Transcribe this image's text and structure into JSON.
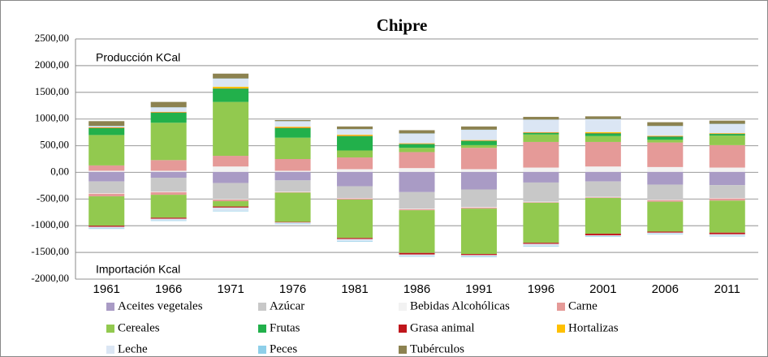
{
  "chart_data": {
    "type": "bar",
    "title": "Chipre",
    "annotations": [
      "Producción KCal",
      "Importación Kcal"
    ],
    "categories": [
      "1961",
      "1966",
      "1971",
      "1976",
      "1981",
      "1986",
      "1991",
      "1996",
      "2001",
      "2006",
      "2011"
    ],
    "ylim": [
      -2000,
      2500
    ],
    "yticks": [
      {
        "value": -2000,
        "label": "-2000,00"
      },
      {
        "value": -1500,
        "label": "-1500,00"
      },
      {
        "value": -1000,
        "label": "-1000,00"
      },
      {
        "value": -500,
        "label": "-500,00"
      },
      {
        "value": 0,
        "label": "0,00"
      },
      {
        "value": 500,
        "label": "500,00"
      },
      {
        "value": 1000,
        "label": "1000,00"
      },
      {
        "value": 1500,
        "label": "1500,00"
      },
      {
        "value": 2000,
        "label": "2000,00"
      },
      {
        "value": 2500,
        "label": "2500,00"
      }
    ],
    "grid": true,
    "series": [
      {
        "name": "Aceites vegetales",
        "color": "#a99bc5",
        "values": [
          10,
          10,
          10,
          10,
          10,
          10,
          10,
          10,
          10,
          10,
          10
        ],
        "import": [
          -170,
          -100,
          -200,
          -150,
          -260,
          -370,
          -320,
          -190,
          -170,
          -230,
          -240
        ]
      },
      {
        "name": "Azúcar",
        "color": "#c8c8c8",
        "values": [
          0,
          0,
          0,
          0,
          0,
          0,
          0,
          0,
          0,
          0,
          0
        ],
        "import": [
          -220,
          -260,
          -300,
          -210,
          -220,
          -310,
          -330,
          -360,
          -290,
          -280,
          -240
        ]
      },
      {
        "name": "Bebidas Alcohólicas",
        "color": "#f2f2f2",
        "values": [
          20,
          20,
          100,
          20,
          50,
          70,
          50,
          80,
          100,
          90,
          80
        ],
        "import": [
          -10,
          -10,
          -10,
          -10,
          -10,
          -10,
          -10,
          -10,
          -10,
          -10,
          -10
        ]
      },
      {
        "name": "Carne",
        "color": "#e59a98",
        "values": [
          100,
          200,
          200,
          220,
          220,
          300,
          400,
          480,
          460,
          460,
          420
        ],
        "import": [
          -50,
          -50,
          -30,
          -10,
          -20,
          -20,
          -20,
          -10,
          -10,
          -30,
          -40
        ]
      },
      {
        "name": "Cereales",
        "color": "#92c94f",
        "values": [
          570,
          700,
          1010,
          400,
          130,
          80,
          50,
          140,
          110,
          50,
          180
        ],
        "import": [
          -550,
          -430,
          -100,
          -550,
          -720,
          -800,
          -850,
          -750,
          -670,
          -560,
          -600
        ]
      },
      {
        "name": "Frutas",
        "color": "#22b04b",
        "values": [
          130,
          190,
          250,
          180,
          270,
          70,
          80,
          30,
          50,
          60,
          30
        ],
        "import": [
          0,
          0,
          0,
          0,
          0,
          0,
          0,
          0,
          0,
          0,
          0
        ]
      },
      {
        "name": "Grasa animal",
        "color": "#c0161c",
        "values": [
          5,
          5,
          5,
          5,
          5,
          5,
          5,
          5,
          5,
          5,
          5
        ],
        "import": [
          -20,
          -20,
          -20,
          -10,
          -20,
          -30,
          -20,
          -20,
          -30,
          -20,
          -30
        ]
      },
      {
        "name": "Hortalizas",
        "color": "#ffc000",
        "values": [
          10,
          10,
          30,
          20,
          20,
          10,
          10,
          10,
          20,
          10,
          10
        ],
        "import": [
          0,
          0,
          0,
          0,
          0,
          0,
          0,
          0,
          0,
          0,
          0
        ]
      },
      {
        "name": "Leche",
        "color": "#dbe6f4",
        "values": [
          20,
          80,
          150,
          100,
          100,
          180,
          190,
          230,
          240,
          180,
          170
        ],
        "import": [
          -30,
          -30,
          -60,
          -20,
          -40,
          -30,
          -30,
          -40,
          -20,
          -20,
          -30
        ]
      },
      {
        "name": "Peces",
        "color": "#8ecfe9",
        "values": [
          5,
          5,
          5,
          5,
          5,
          5,
          5,
          5,
          5,
          5,
          5
        ],
        "import": [
          -10,
          -10,
          -10,
          -10,
          -10,
          -10,
          -10,
          -10,
          -10,
          -10,
          -10
        ]
      },
      {
        "name": "Tubérculos",
        "color": "#8c8250",
        "values": [
          90,
          100,
          90,
          20,
          50,
          60,
          60,
          50,
          50,
          70,
          60
        ],
        "import": [
          0,
          0,
          0,
          0,
          0,
          0,
          0,
          0,
          0,
          0,
          0
        ]
      }
    ]
  }
}
